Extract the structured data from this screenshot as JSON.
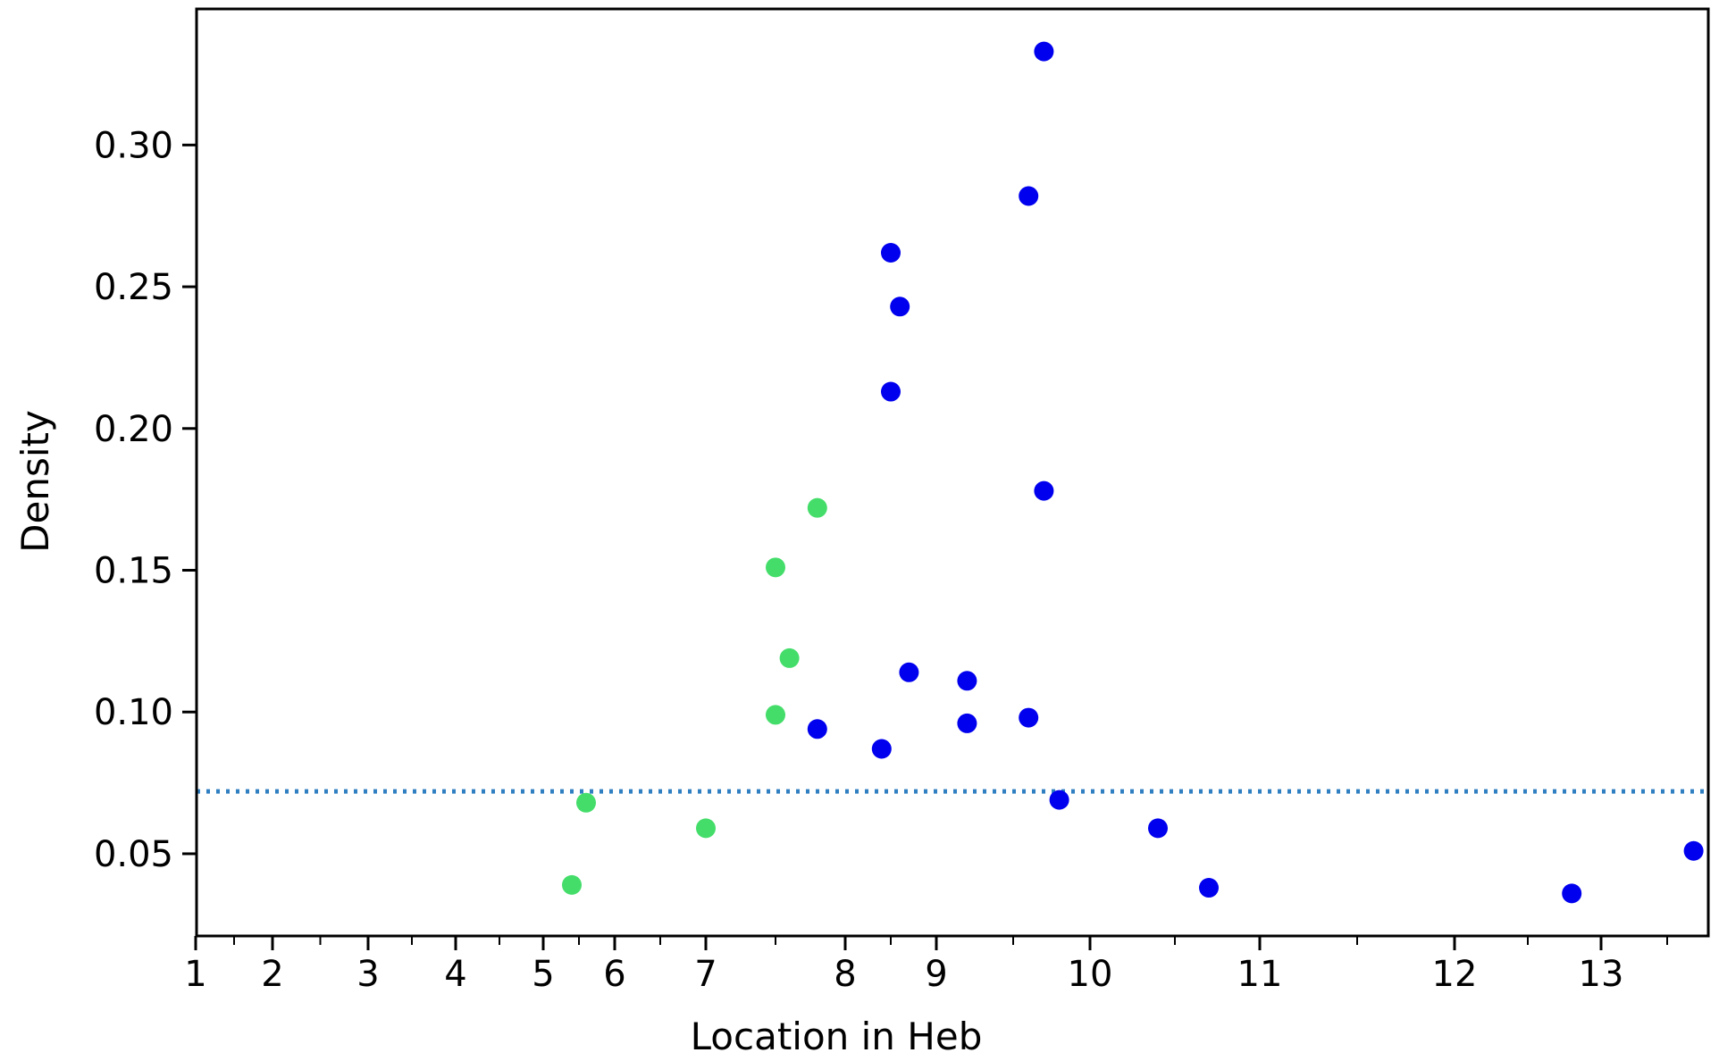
{
  "chart_data": {
    "type": "scatter",
    "title": "",
    "xlabel": "Location in Heb",
    "ylabel": "Density",
    "grid": false,
    "legend": "none",
    "x_ticks": [
      {
        "label": "1",
        "value": 1
      },
      {
        "label": "2",
        "value": 2
      },
      {
        "label": "3",
        "value": 3
      },
      {
        "label": "4",
        "value": 4
      },
      {
        "label": "5",
        "value": 5
      },
      {
        "label": "6",
        "value": 6
      },
      {
        "label": "7",
        "value": 7
      },
      {
        "label": "8",
        "value": 8
      },
      {
        "label": "9",
        "value": 9
      },
      {
        "label": "10",
        "value": 10
      },
      {
        "label": "11",
        "value": 11
      },
      {
        "label": "12",
        "value": 12
      },
      {
        "label": "13",
        "value": 13
      }
    ],
    "y_ticks": [
      {
        "label": "0.05",
        "value": 0.05
      },
      {
        "label": "0.10",
        "value": 0.1
      },
      {
        "label": "0.15",
        "value": 0.15
      },
      {
        "label": "0.20",
        "value": 0.2
      },
      {
        "label": "0.25",
        "value": 0.25
      },
      {
        "label": "0.30",
        "value": 0.3
      }
    ],
    "ylim": [
      0.021,
      0.348
    ],
    "reference_line": {
      "y": 0.072,
      "style": "dotted",
      "color": "#2f7fc1"
    },
    "series": [
      {
        "color": "#44dd6a",
        "points": [
          {
            "x": 5.4,
            "y": 0.039
          },
          {
            "x": 5.6,
            "y": 0.068
          },
          {
            "x": 7.0,
            "y": 0.059
          },
          {
            "x": 7.5,
            "y": 0.099
          },
          {
            "x": 7.5,
            "y": 0.151
          },
          {
            "x": 7.6,
            "y": 0.119
          },
          {
            "x": 7.8,
            "y": 0.172
          }
        ]
      },
      {
        "color": "#0000ee",
        "points": [
          {
            "x": 7.8,
            "y": 0.094
          },
          {
            "x": 8.4,
            "y": 0.087
          },
          {
            "x": 8.5,
            "y": 0.213
          },
          {
            "x": 8.5,
            "y": 0.262
          },
          {
            "x": 8.6,
            "y": 0.243
          },
          {
            "x": 8.7,
            "y": 0.114
          },
          {
            "x": 9.2,
            "y": 0.111
          },
          {
            "x": 9.2,
            "y": 0.096
          },
          {
            "x": 9.6,
            "y": 0.098
          },
          {
            "x": 9.6,
            "y": 0.282
          },
          {
            "x": 9.7,
            "y": 0.333
          },
          {
            "x": 9.7,
            "y": 0.178
          },
          {
            "x": 9.8,
            "y": 0.069
          },
          {
            "x": 10.4,
            "y": 0.059
          },
          {
            "x": 10.7,
            "y": 0.038
          },
          {
            "x": 12.8,
            "y": 0.036
          },
          {
            "x": 13.7,
            "y": 0.051
          }
        ]
      }
    ]
  }
}
